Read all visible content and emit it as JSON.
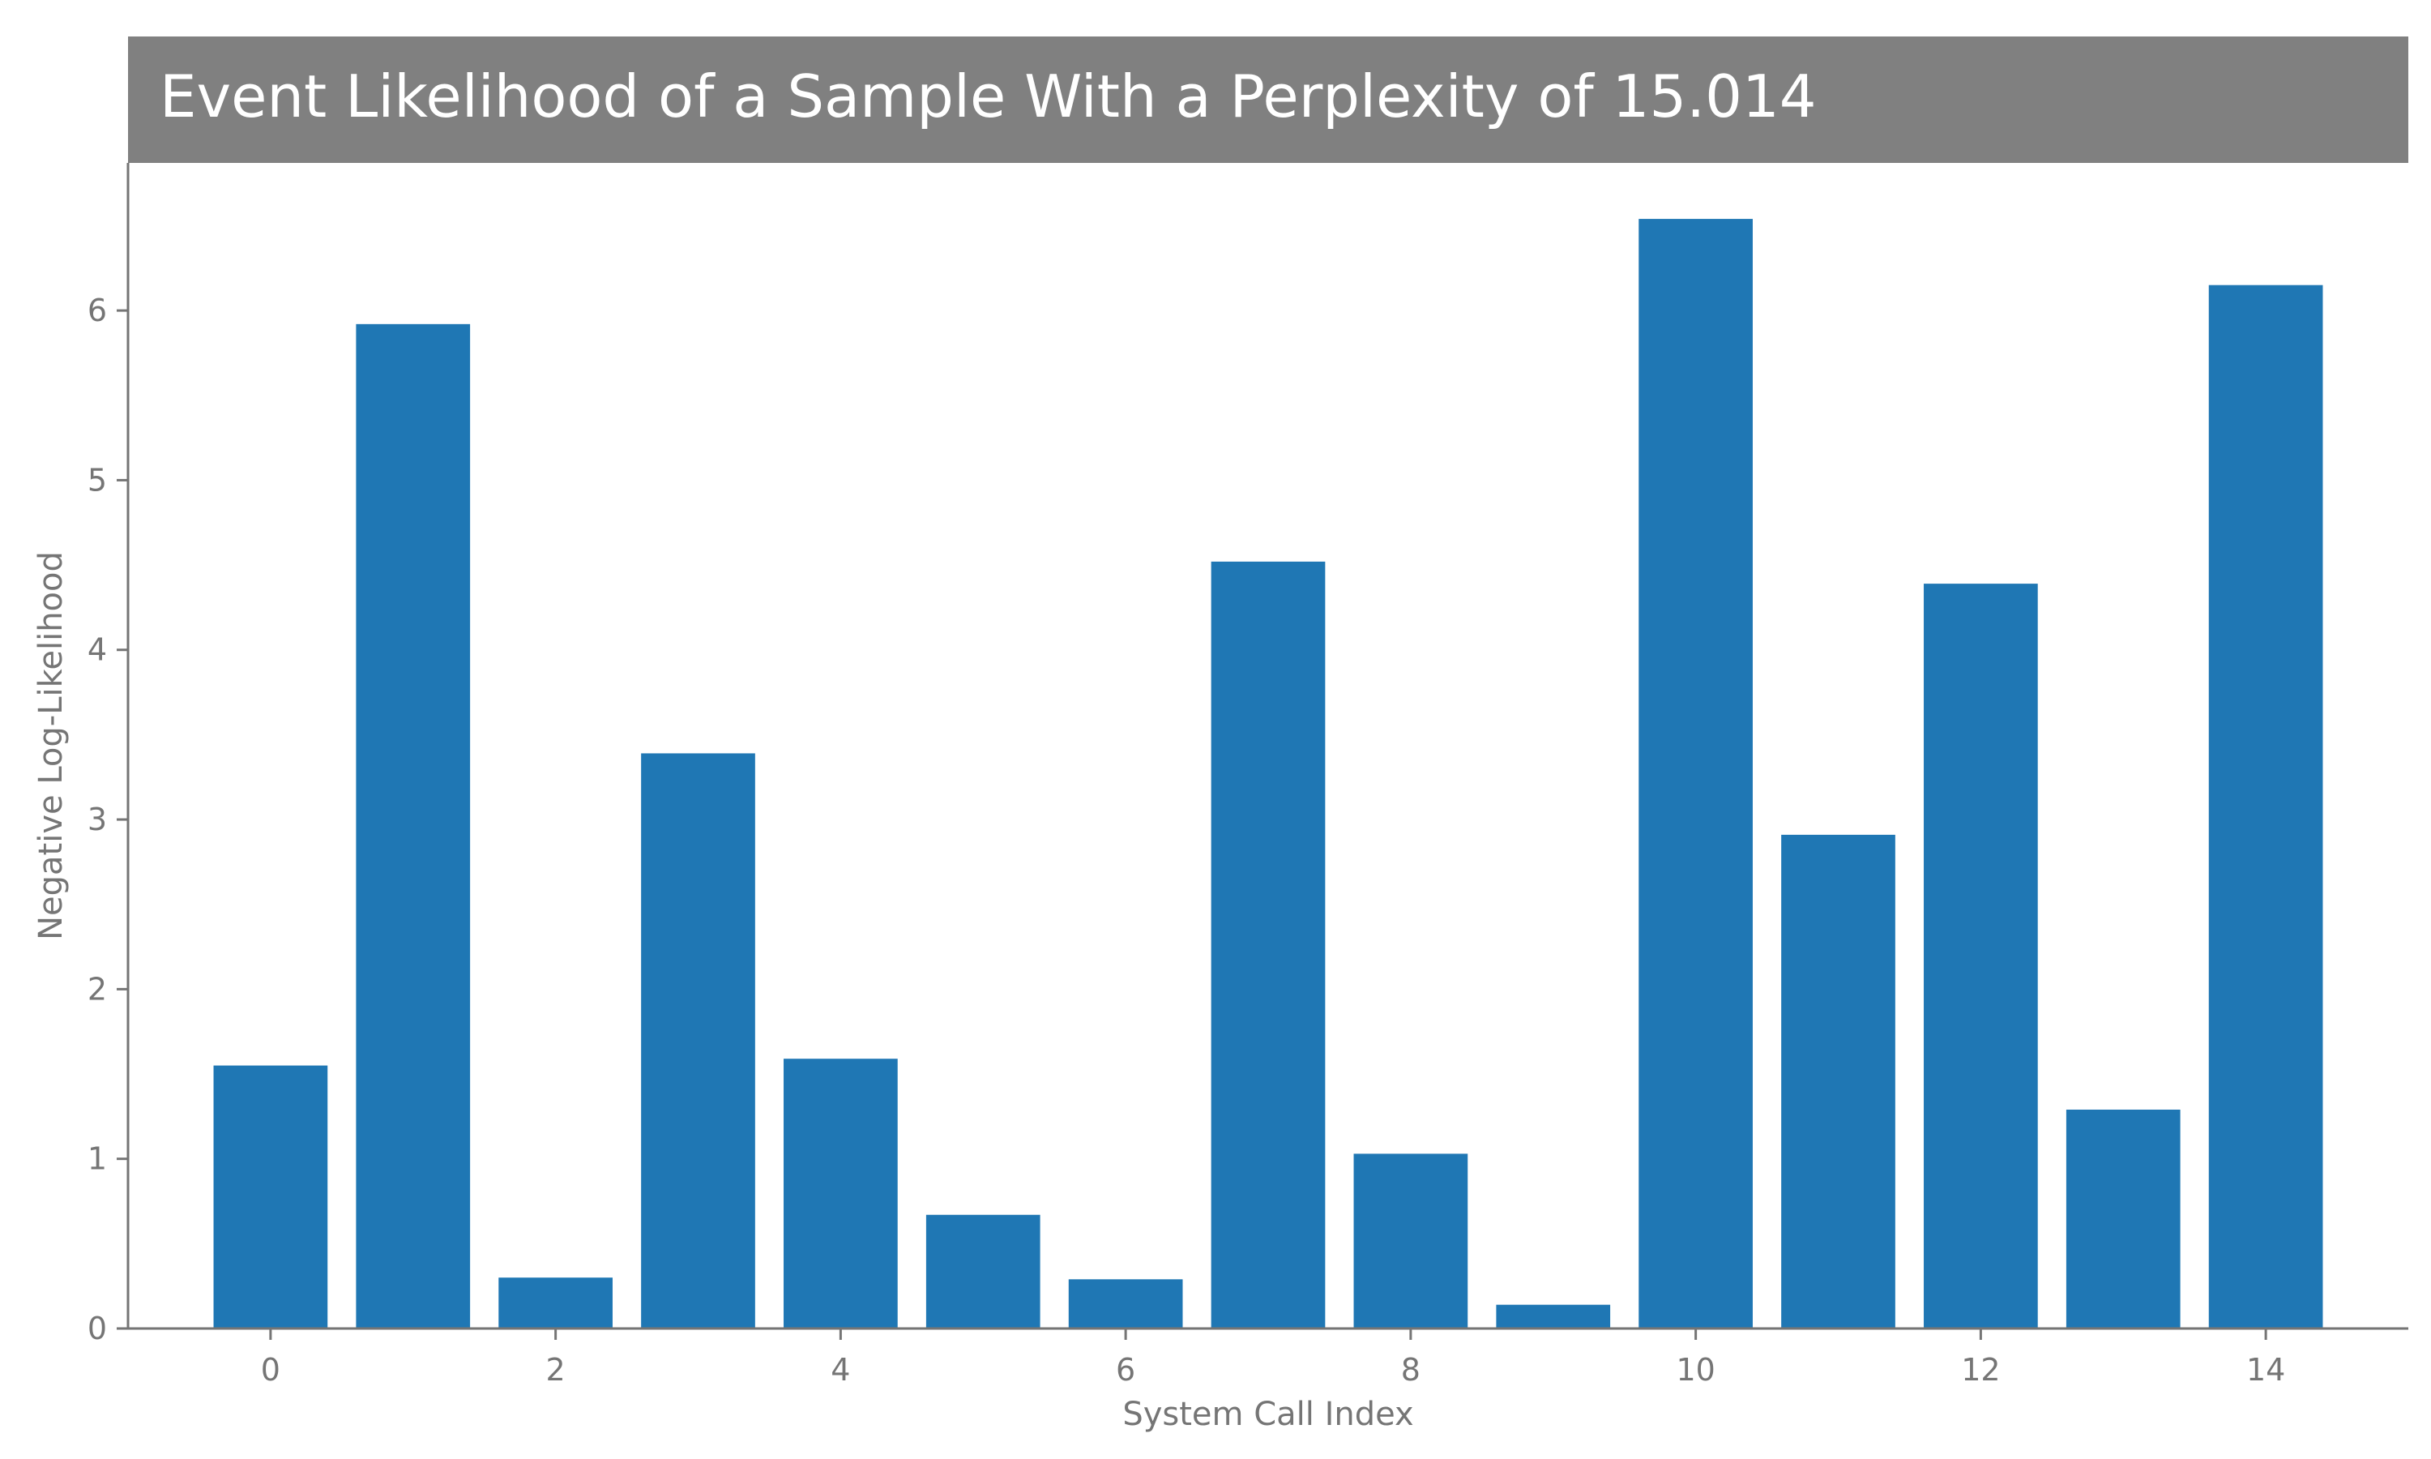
{
  "chart_data": {
    "type": "bar",
    "title": "Event Likelihood of a Sample With a Perplexity of 15.014",
    "xlabel": "System Call Index",
    "ylabel": "Negative Log-Likelihood",
    "x": [
      0,
      1,
      2,
      3,
      4,
      5,
      6,
      7,
      8,
      9,
      10,
      11,
      12,
      13,
      14
    ],
    "values": [
      1.55,
      5.92,
      0.3,
      3.39,
      1.59,
      0.67,
      0.29,
      4.52,
      1.03,
      0.14,
      6.54,
      2.91,
      4.39,
      1.29,
      6.15
    ],
    "xticks": [
      0,
      2,
      4,
      6,
      8,
      10,
      12,
      14
    ],
    "yticks": [
      0,
      1,
      2,
      3,
      4,
      5,
      6
    ],
    "xlim": [
      -1.0,
      15.0
    ],
    "ylim": [
      0,
      6.87
    ],
    "grid": false,
    "legend": "none",
    "colors": {
      "bar": "#1f77b4",
      "title_band": "#808080",
      "title_text": "#ffffff",
      "axis": "#757575"
    }
  }
}
